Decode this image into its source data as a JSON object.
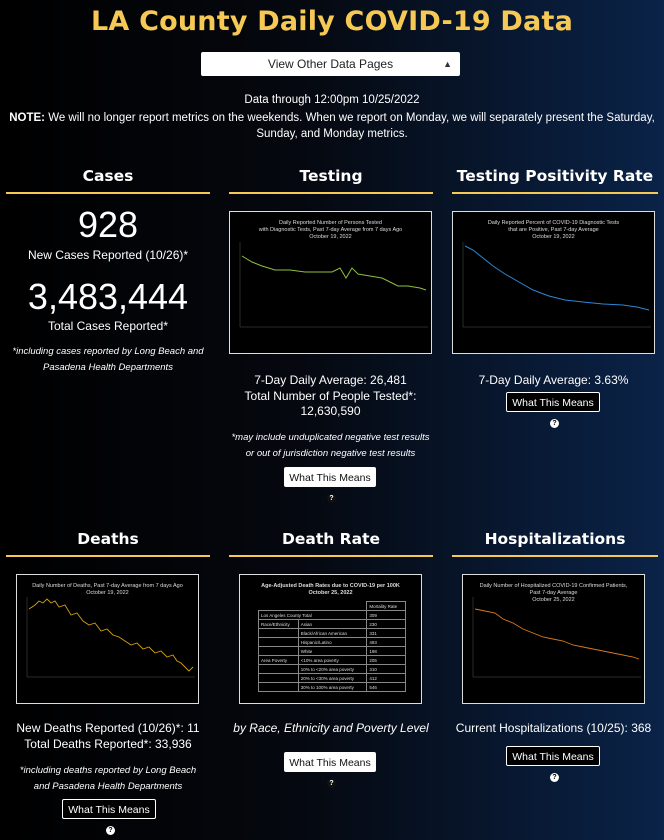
{
  "title": "LA County Daily COVID-19 Data",
  "dropdown": {
    "label": "View Other Data Pages"
  },
  "data_through": "Data through 12:00pm 10/25/2022",
  "note": {
    "label": "NOTE:",
    "text": "We will no longer report metrics on the weekends. When we report on Monday, we will separately present the Saturday, Sunday, and Monday metrics."
  },
  "cases": {
    "heading": "Cases",
    "new_count": "928",
    "new_label": "New Cases Reported (10/26)*",
    "total_count": "3,483,444",
    "total_label": "Total Cases Reported*",
    "footnote": "*including cases reported by Long Beach and Pasadena Health Departments"
  },
  "testing": {
    "heading": "Testing",
    "chart_title": "Daily Reported Number of Persons Tested\nwith Diagnostic Tests, Past 7-day Average from 7 days Ago\nOctober 19, 2022",
    "avg": "7-Day Daily Average: 26,481",
    "total_label": "Total Number of People Tested*:",
    "total_value": "12,630,590",
    "footnote": "*may include unduplicated negative test results or out of jurisdiction negative test results",
    "button": "What This Means"
  },
  "positivity": {
    "heading": "Testing Positivity Rate",
    "chart_title": "Daily Reported Percent of COVID-19 Diagnostic Tests\nthat are Positive, Past 7-day Average\nOctober 19, 2022",
    "avg": "7-Day Daily Average: 3.63%",
    "button": "What This Means"
  },
  "deaths": {
    "heading": "Deaths",
    "chart_title": "Daily Number of Deaths, Past 7-day Average from 7 days Ago\nOctober 19, 2022",
    "new_label": "New Deaths Reported (10/26)*: 11",
    "total_label": "Total Deaths Reported*: 33,936",
    "footnote": "*including deaths reported by Long Beach and Pasadena Health Departments",
    "button": "What This Means"
  },
  "death_rate": {
    "heading": "Death Rate",
    "chart_title": "Age-Adjusted Death Rates due to COVID-19 per 100K\nOctober 25, 2022",
    "caption": "by Race, Ethnicity and Poverty Level",
    "button": "What This Means",
    "table": {
      "col_header": "Mortality Rate",
      "total_label": "Los Angeles County Total",
      "total_value": "309",
      "rows": [
        {
          "group": "Race/Ethnicity",
          "label": "Asian",
          "value": "230"
        },
        {
          "group": "",
          "label": "Black/African American",
          "value": "331"
        },
        {
          "group": "",
          "label": "Hispanic/Latino",
          "value": "493"
        },
        {
          "group": "",
          "label": "White",
          "value": "198"
        },
        {
          "group": "Area Poverty",
          "label": "<10% area poverty",
          "value": "205"
        },
        {
          "group": "",
          "label": "10% to <20% area poverty",
          "value": "310"
        },
        {
          "group": "",
          "label": "20% to <30% area poverty",
          "value": "412"
        },
        {
          "group": "",
          "label": "30% to 100% area poverty",
          "value": "546"
        }
      ]
    }
  },
  "hospitalizations": {
    "heading": "Hospitalizations",
    "chart_title": "Daily Number of Hospitalized COVID-19 Confirmed Patients,\nPast 7-day Average\nOctober 25, 2022",
    "current_label": "Current Hospitalizations (10/25): 368",
    "button": "What This Means"
  },
  "colors": {
    "accent": "#f6c954",
    "testing_line": "#8fbf3f",
    "positivity_line": "#2f86d6",
    "deaths_line": "#d4a017",
    "hosp_line": "#d97a1e"
  }
}
